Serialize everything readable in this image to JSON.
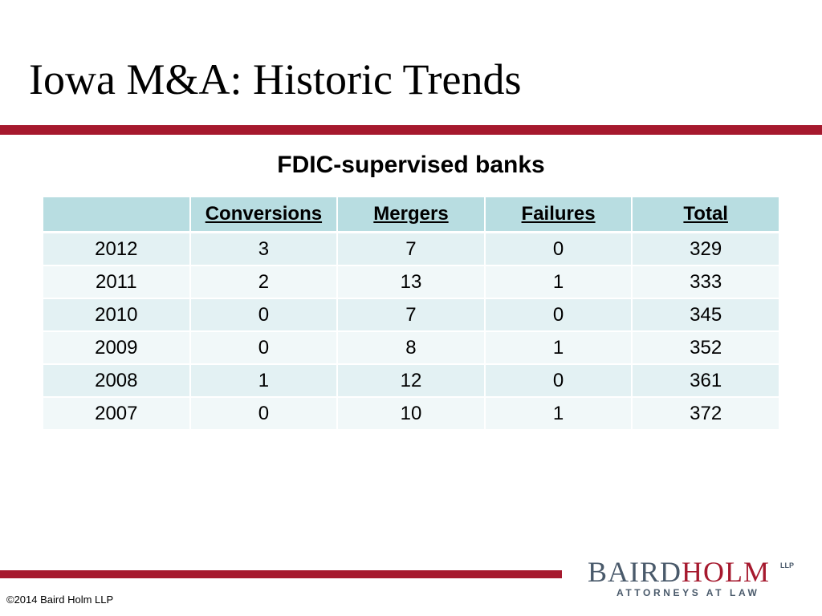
{
  "slide": {
    "title": "Iowa M&A: Historic Trends",
    "table_heading": "FDIC-supervised banks"
  },
  "table": {
    "headers": [
      "",
      "Conversions",
      "Mergers",
      "Failures",
      "Total"
    ],
    "rows": [
      [
        "2012",
        "3",
        "7",
        "0",
        "329"
      ],
      [
        "2011",
        "2",
        "13",
        "1",
        "333"
      ],
      [
        "2010",
        "0",
        "7",
        "0",
        "345"
      ],
      [
        "2009",
        "0",
        "8",
        "1",
        "352"
      ],
      [
        "2008",
        "1",
        "12",
        "0",
        "361"
      ],
      [
        "2007",
        "0",
        "10",
        "1",
        "372"
      ]
    ]
  },
  "footer": {
    "copyright": "©2014 Baird Holm LLP",
    "logo_baird": "BAIRD",
    "logo_holm": "HOLM",
    "logo_llp": "LLP",
    "logo_sub": "ATTORNEYS AT LAW"
  },
  "colors": {
    "accent": "#a6192e",
    "header_fill": "#b8dde1",
    "row_fill_odd": "#e3f1f3",
    "row_fill_even": "#f1f8f9"
  }
}
